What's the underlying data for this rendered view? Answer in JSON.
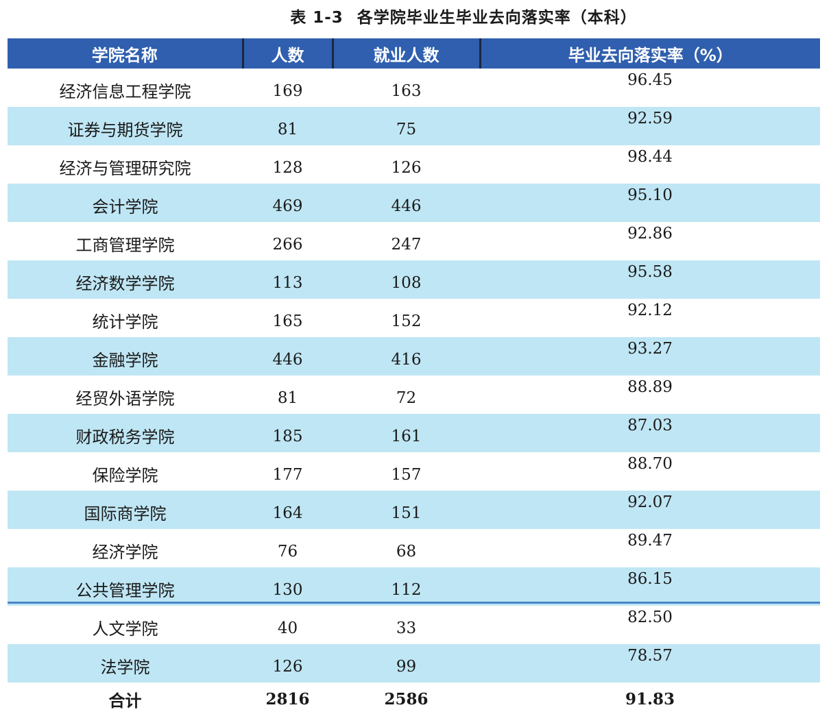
{
  "caption": {
    "number": "表 1-3",
    "title": "各学院毕业生毕业去向落实率（本科）"
  },
  "headers": [
    "学院名称",
    "人数",
    "就业人数",
    "毕业去向落实率（%）"
  ],
  "rows": [
    [
      "经济信息工程学院",
      "169",
      "163",
      "96.45"
    ],
    [
      "证券与期货学院",
      "81",
      "75",
      "92.59"
    ],
    [
      "经济与管理研究院",
      "128",
      "126",
      "98.44"
    ],
    [
      "会计学院",
      "469",
      "446",
      "95.10"
    ],
    [
      "工商管理学院",
      "266",
      "247",
      "92.86"
    ],
    [
      "经济数学学院",
      "113",
      "108",
      "95.58"
    ],
    [
      "统计学院",
      "165",
      "152",
      "92.12"
    ],
    [
      "金融学院",
      "446",
      "416",
      "93.27"
    ],
    [
      "经贸外语学院",
      "81",
      "72",
      "88.89"
    ],
    [
      "财政税务学院",
      "185",
      "161",
      "87.03"
    ],
    [
      "保险学院",
      "177",
      "157",
      "88.70"
    ],
    [
      "国际商学院",
      "164",
      "151",
      "92.07"
    ],
    [
      "经济学院",
      "76",
      "68",
      "89.47"
    ],
    [
      "公共管理学院",
      "130",
      "112",
      "86.15"
    ],
    [
      "人文学院",
      "40",
      "33",
      "82.50"
    ],
    [
      "法学院",
      "126",
      "99",
      "78.57"
    ]
  ],
  "total": [
    "合计",
    "2816",
    "2586",
    "91.83"
  ],
  "colors": {
    "header_bg": "#2f5fae",
    "stripe": "#bfe6f4",
    "rule": "#4a86c5"
  }
}
